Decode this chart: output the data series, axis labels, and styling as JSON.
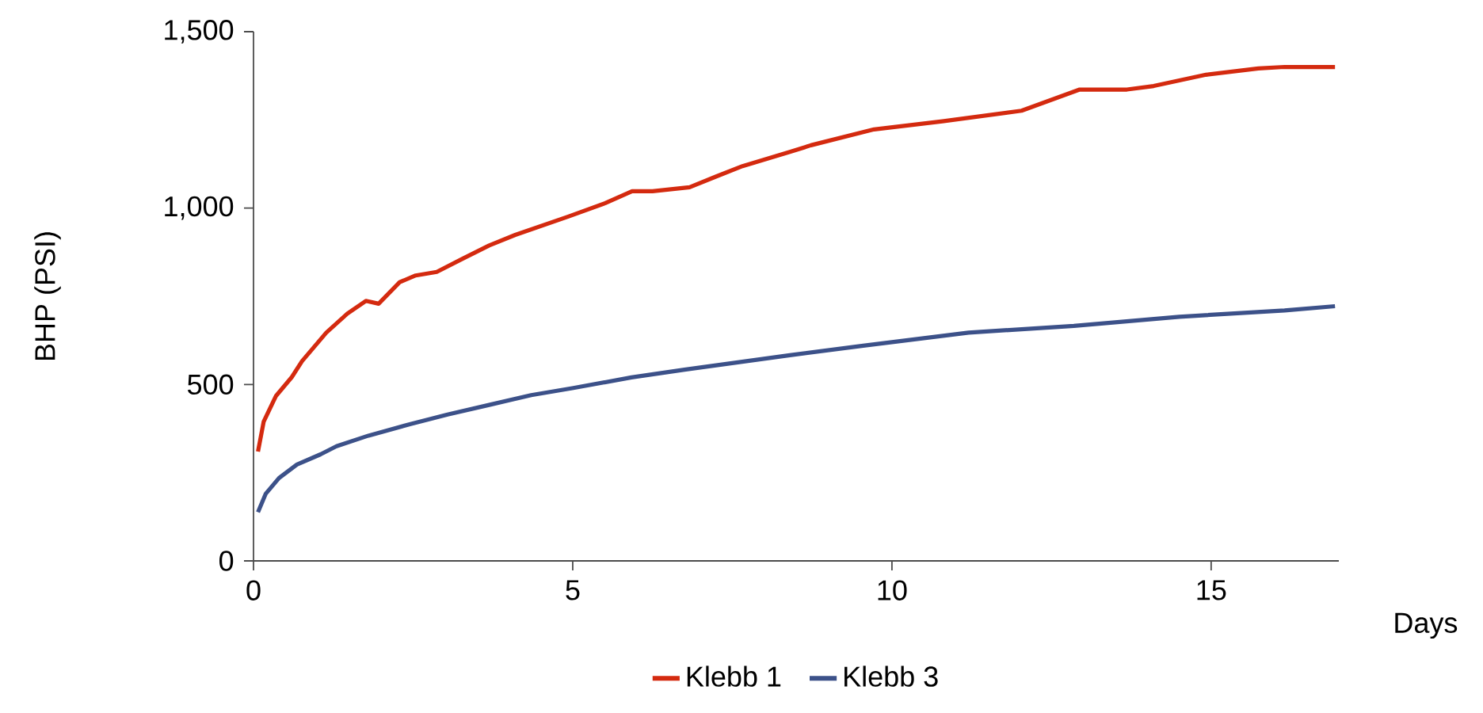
{
  "chart_data": {
    "type": "line",
    "xlabel": "Days",
    "ylabel": "BHP (PSI)",
    "xlim": [
      0,
      17
    ],
    "ylim": [
      0,
      1500
    ],
    "xticks": [
      0,
      5,
      10,
      15
    ],
    "yticks": [
      0,
      500,
      {
        "value": 1000,
        "label": "1,000"
      },
      {
        "value": 1500,
        "label": "1,500"
      }
    ],
    "grid": false,
    "legend": "bottom",
    "marker": "none",
    "line_style": "solid",
    "series": [
      {
        "name": "Klebb 1",
        "color": "#d42a0f",
        "x": [
          0.07,
          0.16,
          0.35,
          0.6,
          0.76,
          1.14,
          1.47,
          1.76,
          1.96,
          2.29,
          2.54,
          2.87,
          3.28,
          3.69,
          4.1,
          4.93,
          5.51,
          5.93,
          6.25,
          6.83,
          7.24,
          7.66,
          8.4,
          8.73,
          9.72,
          10.79,
          12.03,
          12.94,
          13.68,
          14.1,
          14.92,
          15.74,
          16.15,
          16.94
        ],
        "values": [
          310,
          395,
          467,
          521,
          566,
          647,
          701,
          737,
          729,
          790,
          809,
          819,
          857,
          894,
          924,
          976,
          1014,
          1048,
          1048,
          1059,
          1089,
          1119,
          1159,
          1178,
          1223,
          1246,
          1276,
          1336,
          1336,
          1346,
          1378,
          1396,
          1400,
          1400
        ]
      },
      {
        "name": "Klebb 3",
        "color": "#3c5189",
        "x": [
          0.07,
          0.19,
          0.4,
          0.68,
          1.05,
          1.3,
          1.8,
          2.46,
          3.04,
          3.69,
          4.35,
          5.01,
          5.92,
          6.75,
          8.4,
          9.55,
          11.2,
          12.85,
          14.5,
          16.15,
          16.94
        ],
        "values": [
          138,
          190,
          235,
          273,
          302,
          325,
          355,
          388,
          415,
          442,
          470,
          490,
          520,
          542,
          583,
          610,
          647,
          666,
          692,
          710,
          722
        ]
      }
    ]
  }
}
